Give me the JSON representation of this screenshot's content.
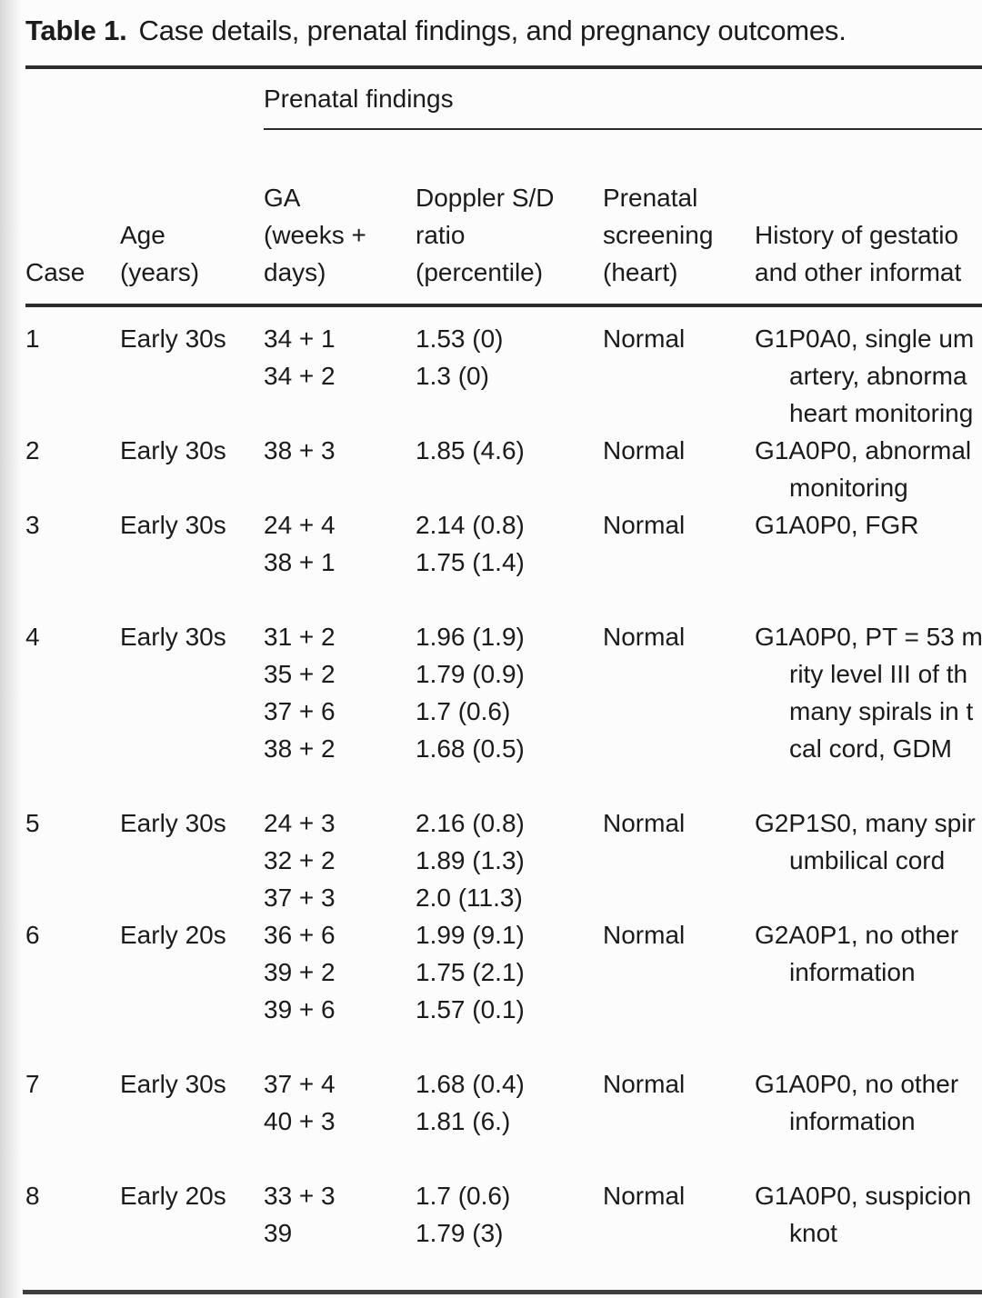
{
  "title": {
    "label": "Table 1.",
    "text": "Case details, prenatal findings, and pregnancy outcomes."
  },
  "table": {
    "spanner": "Prenatal findings",
    "columns": [
      {
        "id": "case",
        "lines": [
          "Case"
        ]
      },
      {
        "id": "age",
        "lines": [
          "Age",
          "(years)"
        ]
      },
      {
        "id": "ga",
        "lines": [
          "GA",
          "(weeks +",
          "days)"
        ]
      },
      {
        "id": "doppler",
        "lines": [
          "Doppler S/D",
          "ratio",
          "(percentile)"
        ]
      },
      {
        "id": "screening",
        "lines": [
          "Prenatal",
          "screening",
          "(heart)"
        ]
      },
      {
        "id": "history",
        "lines": [
          "History of gestatio",
          "and other informat"
        ]
      }
    ],
    "rows": [
      {
        "case": "1",
        "age": "Early 30s",
        "ga": [
          "34 + 1",
          "34 + 2"
        ],
        "doppler": [
          "1.53 (0)",
          "1.3 (0)"
        ],
        "screening": "Normal",
        "history": [
          "G1P0A0, single um",
          "artery, abnorma",
          "heart monitoring"
        ]
      },
      {
        "case": "2",
        "age": "Early 30s",
        "ga": [
          "38 + 3"
        ],
        "doppler": [
          "1.85 (4.6)"
        ],
        "screening": "Normal",
        "history": [
          "G1A0P0, abnormal",
          "monitoring"
        ]
      },
      {
        "case": "3",
        "age": "Early 30s",
        "ga": [
          "24 + 4",
          "38 + 1"
        ],
        "doppler": [
          "2.14 (0.8)",
          "1.75 (1.4)"
        ],
        "screening": "Normal",
        "history": [
          "G1A0P0, FGR"
        ]
      },
      {
        "case": "4",
        "age": "Early 30s",
        "ga": [
          "31 + 2",
          "35 + 2",
          "37 + 6",
          "38 + 2"
        ],
        "doppler": [
          "1.96 (1.9)",
          "1.79 (0.9)",
          "1.7 (0.6)",
          "1.68 (0.5)"
        ],
        "screening": "Normal",
        "history": [
          "G1A0P0, PT = 53 m",
          "rity level III of th",
          "many spirals in t",
          "cal cord, GDM"
        ]
      },
      {
        "case": "5",
        "age": "Early 30s",
        "ga": [
          "24 + 3",
          "32 + 2",
          "37 + 3"
        ],
        "doppler": [
          "2.16 (0.8)",
          "1.89 (1.3)",
          "2.0 (11.3)"
        ],
        "screening": "Normal",
        "history": [
          "G2P1S0, many spir",
          "umbilical cord"
        ]
      },
      {
        "case": "6",
        "age": "Early 20s",
        "ga": [
          "36 + 6",
          "39 + 2",
          "39 + 6"
        ],
        "doppler": [
          "1.99 (9.1)",
          "1.75 (2.1)",
          "1.57 (0.1)"
        ],
        "screening": "Normal",
        "history": [
          "G2A0P1, no other",
          "information"
        ]
      },
      {
        "case": "7",
        "age": "Early 30s",
        "ga": [
          "37 + 4",
          "40 + 3"
        ],
        "doppler": [
          "1.68 (0.4)",
          "1.81 (6.)"
        ],
        "screening": "Normal",
        "history": [
          "G1A0P0, no other",
          "information"
        ]
      },
      {
        "case": "8",
        "age": "Early 20s",
        "ga": [
          "33 + 3",
          "39"
        ],
        "doppler": [
          "1.7 (0.6)",
          "1.79 (3)"
        ],
        "screening": "Normal",
        "history": [
          "G1A0P0, suspicion",
          "knot"
        ]
      }
    ]
  },
  "colors": {
    "text": "#1b1b1b",
    "rule": "#2b2b2b",
    "background": "#fcfcfc"
  }
}
